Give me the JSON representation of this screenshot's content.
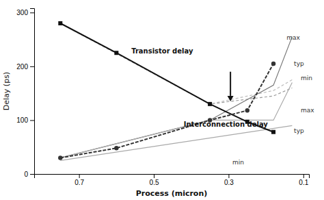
{
  "chart_data": {
    "type": "line",
    "xlabel": "Process (micron)",
    "ylabel": "Delay (ps)",
    "xlim": [
      0.82,
      0.085
    ],
    "ylim": [
      0,
      308
    ],
    "xticks": [
      0.7,
      0.5,
      0.3,
      0.1
    ],
    "yticks": [
      0,
      100,
      200,
      300
    ],
    "series": [
      {
        "x": [
          0.75,
          0.35,
          0.18,
          0.13
        ],
        "values": [
          280,
          130,
          145,
          160
        ],
        "color": "#999999",
        "line_style": "dashed"
      },
      {
        "x": [
          0.75,
          0.35,
          0.18,
          0.13
        ],
        "values": [
          280,
          130,
          155,
          175
        ],
        "color": "#bbbbbb",
        "line_style": "dashed"
      },
      {
        "x": [
          0.75,
          0.35,
          0.18,
          0.13
        ],
        "values": [
          30,
          100,
          165,
          255
        ],
        "color": "#777777",
        "line_style": "solid"
      },
      {
        "x": [
          0.75,
          0.35,
          0.18,
          0.13
        ],
        "values": [
          30,
          100,
          100,
          170
        ],
        "color": "#aaaaaa",
        "line_style": "solid"
      },
      {
        "x": [
          0.75,
          0.13
        ],
        "values": [
          25,
          90
        ],
        "color": "#aaaaaa",
        "line_style": "solid"
      },
      {
        "x": [
          0.75,
          0.6,
          0.35,
          0.25,
          0.18
        ],
        "values": [
          280,
          225,
          130,
          97,
          78
        ],
        "color": "#111111",
        "line_style": "solid",
        "marker": "square"
      },
      {
        "x": [
          0.75,
          0.6,
          0.35,
          0.25,
          0.18
        ],
        "values": [
          30,
          48,
          100,
          118,
          205
        ],
        "color": "#333333",
        "line_style": "dashed",
        "marker": "circle"
      }
    ],
    "arrows": [
      {
        "x": 0.295,
        "y_from": 190,
        "y_to": 135
      }
    ],
    "annotations": [
      {
        "text": "Transistor delay",
        "x": 0.56,
        "y": 228
      },
      {
        "text": "Interconnection delay",
        "x": 0.42,
        "y": 92
      },
      {
        "text": "max",
        "x": 0.145,
        "y": 253
      },
      {
        "text": "typ",
        "x": 0.125,
        "y": 205
      },
      {
        "text": "min",
        "x": 0.107,
        "y": 178
      },
      {
        "text": "max",
        "x": 0.107,
        "y": 118
      },
      {
        "text": "typ",
        "x": 0.125,
        "y": 80
      },
      {
        "text": "min",
        "x": 0.29,
        "y": 22
      }
    ]
  }
}
